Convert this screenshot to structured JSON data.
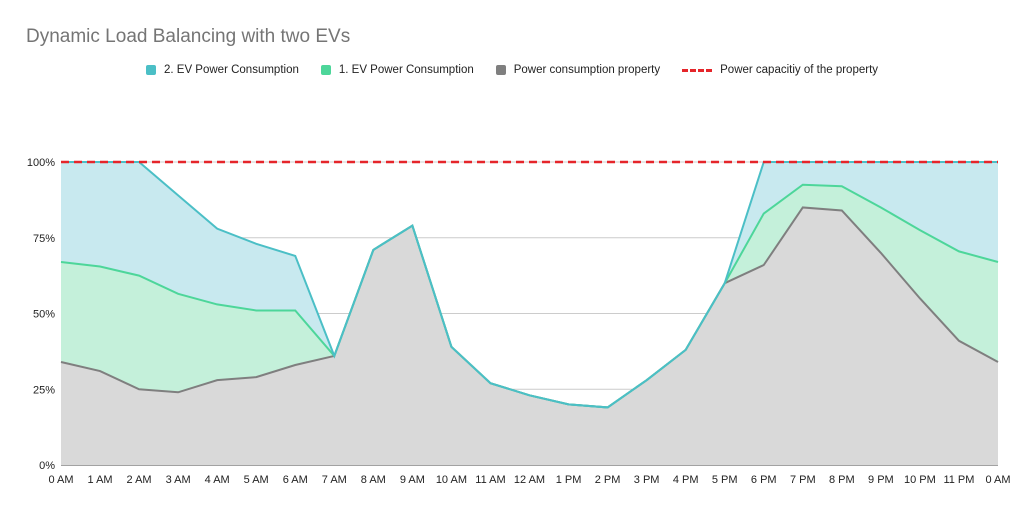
{
  "chart_data": {
    "type": "area",
    "title": "Dynamic Load Balancing with two EVs",
    "xlabel": "",
    "ylabel": "",
    "ylim": [
      0,
      100
    ],
    "y_ticks": [
      "0%",
      "25%",
      "50%",
      "75%",
      "100%"
    ],
    "y_tick_values": [
      0,
      25,
      50,
      75,
      100
    ],
    "categories": [
      "0 AM",
      "1 AM",
      "2 AM",
      "3 AM",
      "4 AM",
      "5 AM",
      "6 AM",
      "7 AM",
      "8 AM",
      "9 AM",
      "10 AM",
      "11 AM",
      "12 AM",
      "1 PM",
      "2 PM",
      "3 PM",
      "4 PM",
      "5 PM",
      "6 PM",
      "7 PM",
      "8 PM",
      "9 PM",
      "10 PM",
      "11 PM",
      "0 AM"
    ],
    "grid": true,
    "legend_position": "top",
    "series": [
      {
        "name": "2. EV Power Consumption",
        "color": "#4bbfc6",
        "values": [
          100,
          100,
          100,
          89,
          78,
          73,
          69,
          36,
          71,
          79,
          39,
          27,
          23,
          20,
          19,
          28,
          38,
          60,
          100,
          100,
          100,
          100,
          100,
          100,
          100
        ]
      },
      {
        "name": "1. EV Power Consumption",
        "color": "#4dd69a",
        "values": [
          67,
          65.5,
          62.5,
          56.5,
          53,
          51,
          51,
          36,
          71,
          79,
          39,
          27,
          23,
          20,
          19,
          28,
          38,
          60,
          83,
          92.5,
          92,
          85,
          77.5,
          70.5,
          67
        ]
      },
      {
        "name": "Power consumption property",
        "color": "#7f7f7f",
        "values": [
          34,
          31,
          25,
          24,
          28,
          29,
          33,
          36,
          71,
          79,
          39,
          27,
          23,
          20,
          19,
          28,
          38,
          60,
          66,
          85,
          84,
          70,
          55,
          41,
          34
        ]
      },
      {
        "name": "Power capacitiy of the property",
        "color": "#e5252a",
        "style": "dashed",
        "values": [
          100,
          100,
          100,
          100,
          100,
          100,
          100,
          100,
          100,
          100,
          100,
          100,
          100,
          100,
          100,
          100,
          100,
          100,
          100,
          100,
          100,
          100,
          100,
          100,
          100
        ]
      }
    ]
  }
}
